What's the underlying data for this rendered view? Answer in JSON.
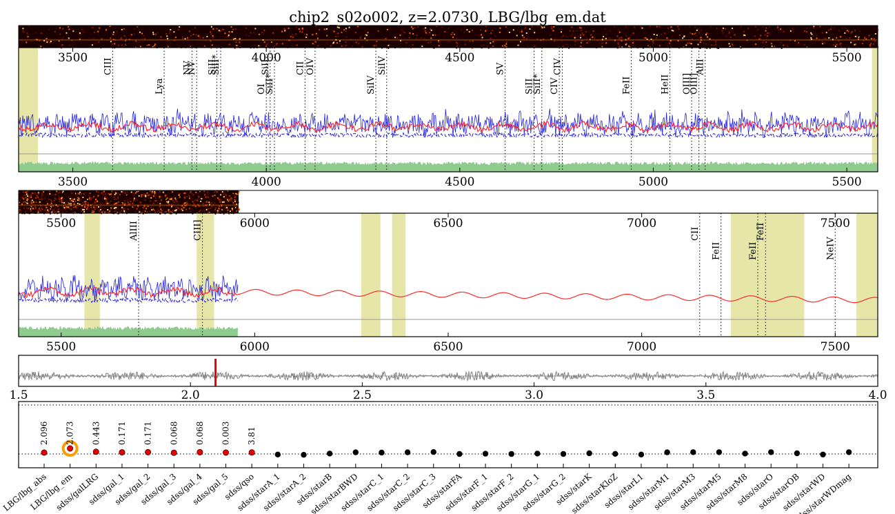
{
  "title": "chip2_s02o002, z=2.0730, LBG/lbg_em.dat",
  "colors": {
    "spectrum": "#1f1fe6",
    "model": "#ff2a2a",
    "error_fill": "#8fca8f",
    "masked_band": "#e6e6a8",
    "zero_line": "#9a9a9a",
    "chi_curve": "#808080",
    "redshift_marker": "#e60000",
    "best_template": "#f5a000",
    "point_red": "#e60000",
    "point_black": "#000000"
  },
  "chart_data": [
    {
      "type": "line",
      "panel": "spectrum-upper",
      "xlim": [
        3360,
        5580
      ],
      "x_ticks": [
        "3500",
        "4000",
        "4500",
        "5000",
        "5500"
      ],
      "series": [
        {
          "values_desc": "observed flux",
          "style": "solid-blue"
        },
        {
          "values_desc": "noise",
          "style": "dashed-blue"
        },
        {
          "values_desc": "template model",
          "style": "solid-red"
        }
      ],
      "masked_regions": [
        [
          3360,
          3410
        ],
        [
          5565,
          5580
        ]
      ],
      "lines": [
        {
          "name": "CIII",
          "x": 3603,
          "row": 0
        },
        {
          "name": "Lya",
          "x": 3736,
          "row": 1
        },
        {
          "name": "NV",
          "x": 3808,
          "row": 0
        },
        {
          "name": "NV",
          "x": 3820,
          "row": 0
        },
        {
          "name": "SiII",
          "x": 3872,
          "row": 0
        },
        {
          "name": "SiII*",
          "x": 3882,
          "row": 0
        },
        {
          "name": "OI",
          "x": 4000,
          "row": 1
        },
        {
          "name": "SiII",
          "x": 4010,
          "row": 0
        },
        {
          "name": "SiII*",
          "x": 4021,
          "row": 1
        },
        {
          "name": "CII",
          "x": 4100,
          "row": 0
        },
        {
          "name": "OIV",
          "x": 4126,
          "row": 0
        },
        {
          "name": "SiIV",
          "x": 4283,
          "row": 1
        },
        {
          "name": "SiIV",
          "x": 4311,
          "row": 0
        },
        {
          "name": "SV",
          "x": 4617,
          "row": 0
        },
        {
          "name": "SiII",
          "x": 4692,
          "row": 1
        },
        {
          "name": "SiII*",
          "x": 4712,
          "row": 1
        },
        {
          "name": "CIV",
          "x": 4757,
          "row": 1
        },
        {
          "name": "CIV",
          "x": 4765,
          "row": 0
        },
        {
          "name": "FeII",
          "x": 4943,
          "row": 1
        },
        {
          "name": "HeII",
          "x": 5043,
          "row": 1
        },
        {
          "name": "OIII]",
          "x": 5099,
          "row": 1
        },
        {
          "name": "OIII]",
          "x": 5118,
          "row": 1
        },
        {
          "name": "AlII",
          "x": 5134,
          "row": 0
        }
      ]
    },
    {
      "type": "line",
      "panel": "spectrum-lower",
      "xlim": [
        5390,
        7610
      ],
      "x_ticks": [
        "5500",
        "6000",
        "6500",
        "7000",
        "7500"
      ],
      "masked_regions": [
        [
          5560,
          5600
        ],
        [
          5850,
          5895
        ],
        [
          6275,
          6325
        ],
        [
          6355,
          6390
        ],
        [
          7230,
          7420
        ],
        [
          7555,
          7610
        ]
      ],
      "lines": [
        {
          "name": "AlIII",
          "x": 5700,
          "row": 0
        },
        {
          "name": "CIII]",
          "x": 5865,
          "row": 0
        },
        {
          "name": "CII",
          "x": 7150,
          "row": 0
        },
        {
          "name": "FeII",
          "x": 7205,
          "row": 1
        },
        {
          "name": "FeII",
          "x": 7300,
          "row": 1
        },
        {
          "name": "FeII",
          "x": 7320,
          "row": 0
        },
        {
          "name": "NeIV",
          "x": 7500,
          "row": 1
        }
      ]
    },
    {
      "type": "line",
      "panel": "chi2-vs-redshift",
      "xlim": [
        1.5,
        4.0
      ],
      "x_ticks": [
        "1.5",
        "2.0",
        "2.5",
        "3.0",
        "3.5",
        "4.0"
      ],
      "redshift": 2.073
    },
    {
      "type": "scatter",
      "panel": "templates",
      "categories": [
        "LBG/lbg_abs",
        "LBG/lbg_em",
        "sdss/galLRG",
        "sdss/gal_1",
        "sdss/gal_2",
        "sdss/gal_3",
        "sdss/gal_4",
        "sdss/gal_5",
        "sdss/qso",
        "sdss/starA_1",
        "sdss/starA_2",
        "sdss/starB",
        "sdss/starBWD",
        "sdss/starC_1",
        "sdss/starC_2",
        "sdss/starC_3",
        "sdss/starFA",
        "sdss/starF_1",
        "sdss/starF_2",
        "sdss/starG_1",
        "sdss/starG_2",
        "sdss/starK",
        "sdss/starKloZ",
        "sdss/starL1",
        "sdss/starM1",
        "sdss/starM3",
        "sdss/starM5",
        "sdss/starM8",
        "sdss/starO",
        "sdss/starOB",
        "sdss/starWD",
        "sdss/starWDmag"
      ],
      "redshift_labels": [
        "2.096",
        "2.073",
        "0.443",
        "0.171",
        "0.171",
        "0.068",
        "0.068",
        "0.003",
        "3.81"
      ],
      "best_index": 1,
      "offsets": [
        0,
        0,
        0.6,
        0.2,
        0.3,
        -0.1,
        0.3,
        0.0,
        0.1,
        -1.4,
        -1.6,
        -0.7,
        0.2,
        0.0,
        0.2,
        0.4,
        -1.0,
        -0.8,
        -1.0,
        -0.7,
        -1.0,
        -0.5,
        -0.9,
        -1.4,
        0.2,
        0.3,
        0.3,
        -0.7,
        0.3,
        -0.5,
        -1.4,
        0.3
      ]
    }
  ]
}
